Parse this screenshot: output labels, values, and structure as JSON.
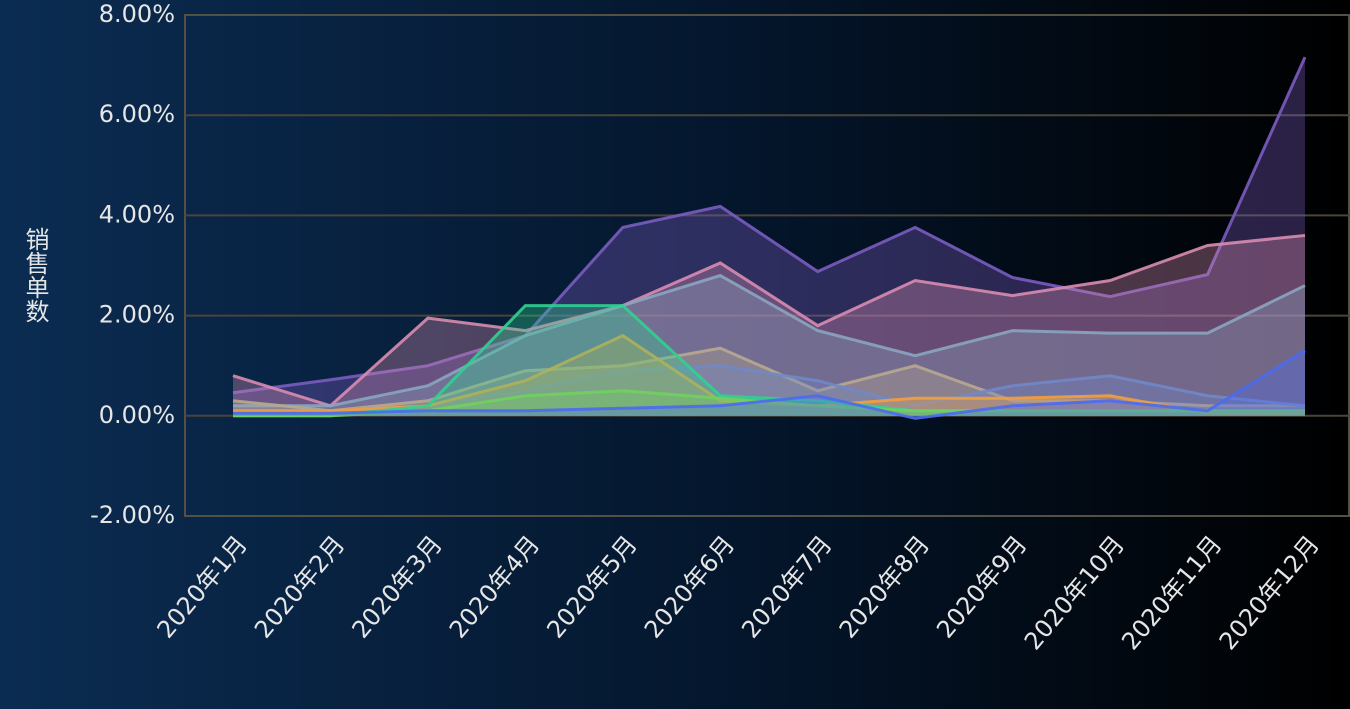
{
  "chart_data": {
    "type": "area",
    "y_label": "销售单数",
    "categories": [
      "2020年1月",
      "2020年2月",
      "2020年3月",
      "2020年4月",
      "2020年5月",
      "2020年6月",
      "2020年7月",
      "2020年8月",
      "2020年9月",
      "2020年10月",
      "2020年11月",
      "2020年12月"
    ],
    "ylim": [
      -2,
      8
    ],
    "yticks": [
      {
        "value": -2,
        "label": "-2.00%"
      },
      {
        "value": 0,
        "label": "0.00%"
      },
      {
        "value": 2,
        "label": "2.00%"
      },
      {
        "value": 4,
        "label": "4.00%"
      },
      {
        "value": 6,
        "label": "6.00%"
      },
      {
        "value": 8,
        "label": "8.00%"
      }
    ],
    "grid": true,
    "series": [
      {
        "color": "#7a5cc0",
        "values": [
          0.46,
          0.72,
          1.0,
          1.6,
          3.76,
          4.18,
          2.88,
          3.76,
          2.76,
          2.38,
          2.82,
          7.16
        ]
      },
      {
        "color": "#d88cb0",
        "values": [
          0.8,
          0.2,
          1.95,
          1.7,
          2.2,
          3.05,
          1.8,
          2.7,
          2.4,
          2.7,
          3.4,
          3.6
        ]
      },
      {
        "color": "#8aa5c0",
        "values": [
          0.2,
          0.2,
          0.6,
          1.6,
          2.2,
          2.8,
          1.7,
          1.2,
          1.7,
          1.65,
          1.65,
          2.6
        ]
      },
      {
        "color": "#b8a890",
        "values": [
          0.3,
          0.1,
          0.3,
          0.9,
          1.0,
          1.35,
          0.5,
          1.0,
          0.3,
          0.3,
          0.2,
          0.2
        ]
      },
      {
        "color": "#7088c8",
        "values": [
          0.1,
          0.1,
          0.2,
          0.5,
          0.9,
          1.0,
          0.7,
          0.2,
          0.6,
          0.8,
          0.4,
          0.2
        ]
      },
      {
        "color": "#f0a040",
        "values": [
          0.1,
          0.1,
          0.2,
          0.7,
          1.6,
          0.3,
          0.2,
          0.35,
          0.35,
          0.4,
          0.05,
          0.05
        ]
      },
      {
        "color": "#30d090",
        "values": [
          0,
          0,
          0.2,
          2.2,
          2.2,
          0.4,
          0.3,
          0.1,
          0.1,
          0.1,
          0.1,
          0.1
        ]
      },
      {
        "color": "#70d060",
        "values": [
          0,
          0,
          0.1,
          0.4,
          0.5,
          0.35,
          0.2,
          0.1,
          0.1,
          0.1,
          0.1,
          0.1
        ]
      },
      {
        "color": "#4a6cf0",
        "values": [
          0.05,
          0.05,
          0.1,
          0.1,
          0.15,
          0.2,
          0.4,
          -0.05,
          0.2,
          0.3,
          0.1,
          1.3
        ]
      }
    ]
  }
}
